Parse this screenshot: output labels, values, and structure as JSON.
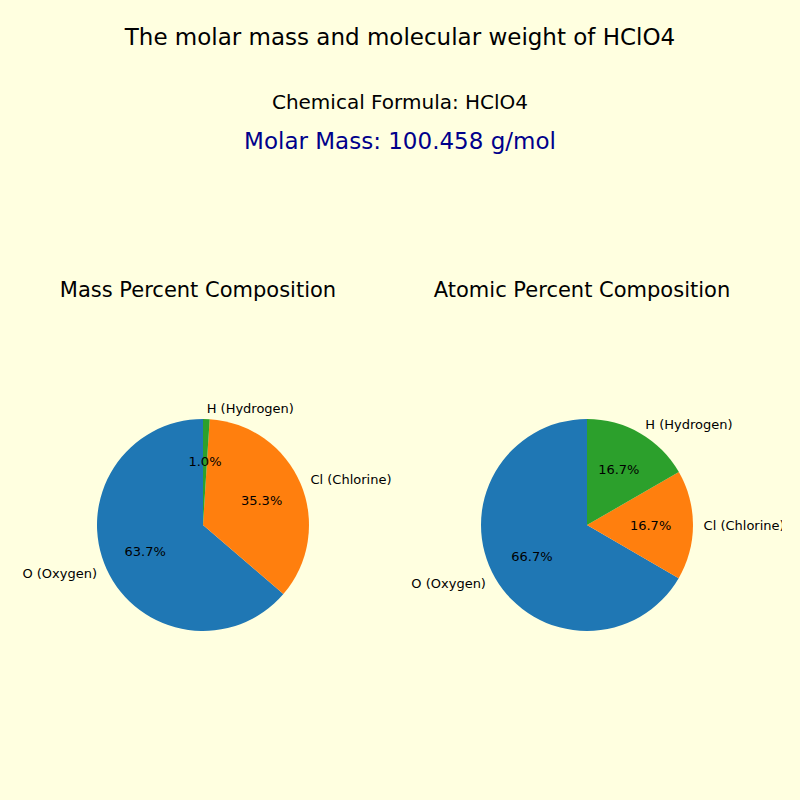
{
  "title": "The molar mass and molecular weight of HClO4",
  "subtitle": "Chemical Formula: HClO4",
  "molar_mass_text": "Molar Mass: 100.458 g/mol",
  "chart_data": [
    {
      "type": "pie",
      "title": "Mass Percent Composition",
      "categories": [
        "O (Oxygen)",
        "Cl (Chlorine)",
        "H (Hydrogen)"
      ],
      "values": [
        63.7,
        35.3,
        1.0
      ],
      "value_labels": [
        "63.7%",
        "35.3%",
        "1.0%"
      ],
      "colors": [
        "#1f77b4",
        "#ff7f0e",
        "#2ca02c"
      ],
      "data_labels": true
    },
    {
      "type": "pie",
      "title": "Atomic Percent Composition",
      "categories": [
        "O (Oxygen)",
        "Cl (Chlorine)",
        "H (Hydrogen)"
      ],
      "values": [
        66.7,
        16.7,
        16.7
      ],
      "value_labels": [
        "66.7%",
        "16.7%",
        "16.7%"
      ],
      "colors": [
        "#1f77b4",
        "#ff7f0e",
        "#2ca02c"
      ],
      "data_labels": true
    }
  ]
}
